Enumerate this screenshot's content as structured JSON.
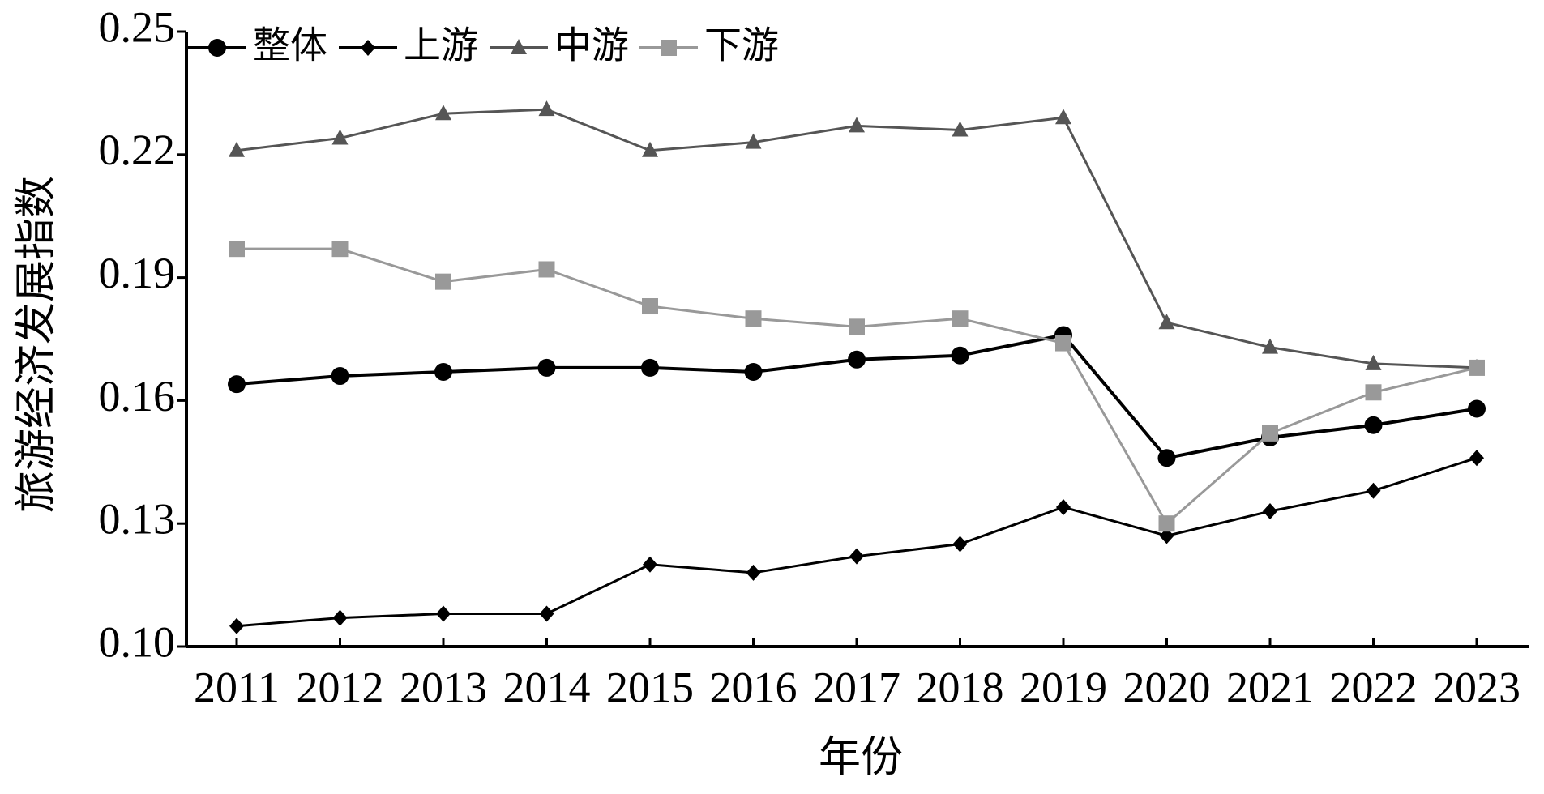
{
  "chart_data": {
    "type": "line",
    "x_label": "年份",
    "y_label": "旅游经济发展指数",
    "categories": [
      "2011",
      "2012",
      "2013",
      "2014",
      "2015",
      "2016",
      "2017",
      "2018",
      "2019",
      "2020",
      "2021",
      "2022",
      "2023"
    ],
    "series": [
      {
        "name": "整体",
        "color": "#000000",
        "marker": "circle",
        "values": [
          0.164,
          0.166,
          0.167,
          0.168,
          0.168,
          0.167,
          0.17,
          0.171,
          0.176,
          0.146,
          0.151,
          0.154,
          0.158
        ]
      },
      {
        "name": "上游",
        "color": "#000000",
        "marker": "diamond",
        "values": [
          0.105,
          0.107,
          0.108,
          0.108,
          0.12,
          0.118,
          0.122,
          0.125,
          0.134,
          0.127,
          0.133,
          0.138,
          0.146
        ]
      },
      {
        "name": "中游",
        "color": "#555555",
        "marker": "triangle",
        "values": [
          0.221,
          0.224,
          0.23,
          0.231,
          0.221,
          0.223,
          0.227,
          0.226,
          0.229,
          0.179,
          0.173,
          0.169,
          0.168
        ]
      },
      {
        "name": "下游",
        "color": "#999999",
        "marker": "square",
        "values": [
          0.197,
          0.197,
          0.189,
          0.192,
          0.183,
          0.18,
          0.178,
          0.18,
          0.174,
          0.13,
          0.152,
          0.162,
          0.168
        ]
      }
    ],
    "ylim": [
      0.1,
      0.25
    ],
    "yticks": [
      {
        "value": 0.1,
        "label": "0.10"
      },
      0.13,
      0.16,
      0.19,
      0.22,
      0.25
    ],
    "legend": "top-left"
  }
}
